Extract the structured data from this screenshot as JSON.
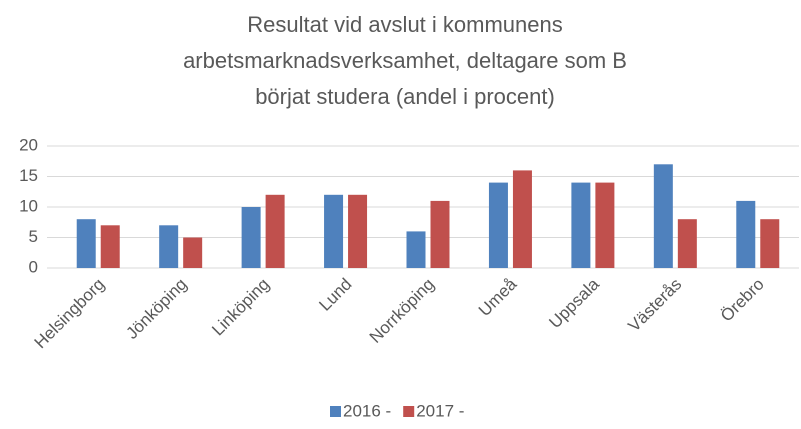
{
  "chart_data": {
    "type": "bar",
    "title": [
      "Resultat vid avslut i kommunens",
      "arbetsmarknadsverksamhet, deltagare som B",
      "börjat studera (andel i procent)"
    ],
    "categories": [
      "Helsingborg",
      "Jönköping",
      "Linköping",
      "Lund",
      "Norrköping",
      "Umeå",
      "Uppsala",
      "Västerås",
      "Örebro"
    ],
    "series": [
      {
        "name": "2016 -",
        "color": "#4f81bd",
        "values": [
          8,
          7,
          10,
          12,
          6,
          14,
          14,
          17,
          11
        ]
      },
      {
        "name": "2017 -",
        "color": "#c0504d",
        "values": [
          7,
          5,
          12,
          12,
          11,
          16,
          14,
          8,
          8
        ]
      }
    ],
    "ylim": [
      0,
      20
    ],
    "yticks": [
      0,
      5,
      10,
      15,
      20
    ],
    "grid": true,
    "legend": "bottom"
  }
}
